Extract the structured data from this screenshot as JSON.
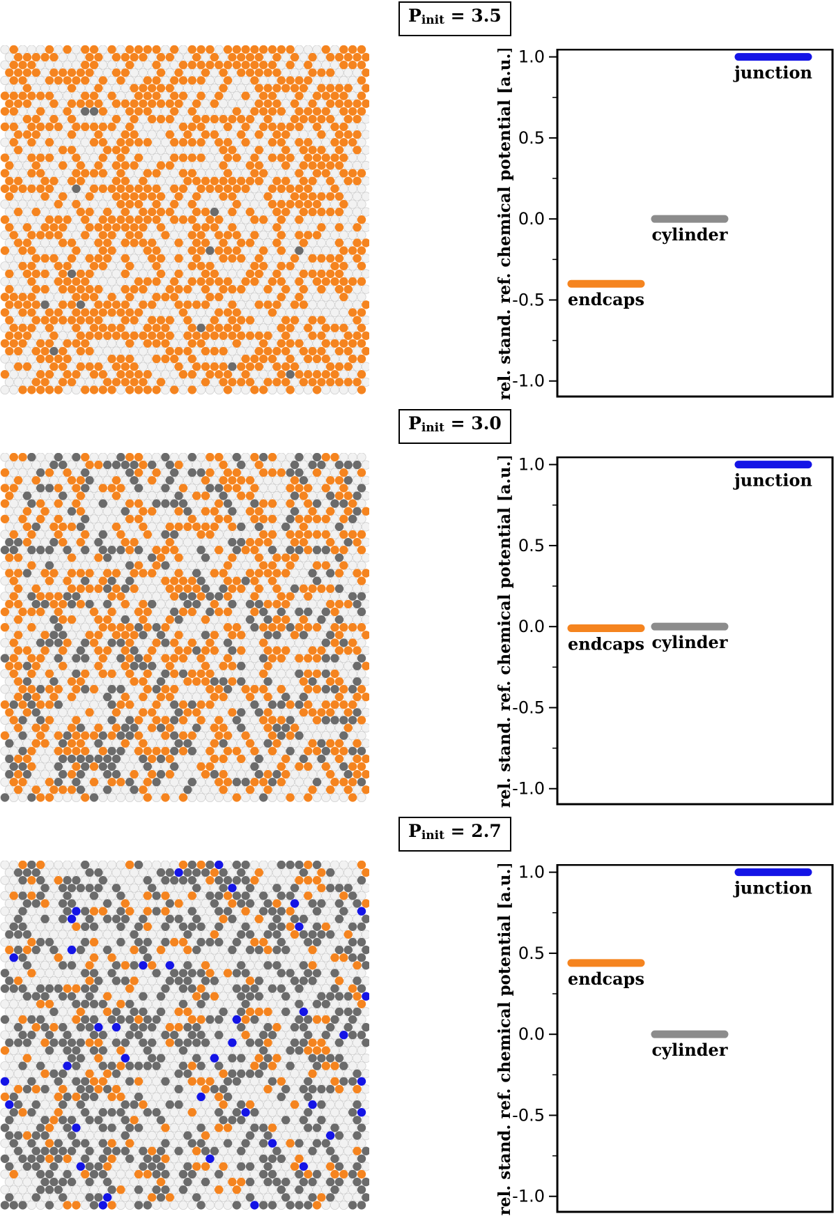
{
  "colors": {
    "endcaps": "#f5841f",
    "cylinder": "#6b6b6b",
    "cylinder_level": "#8c8c8c",
    "junction": "#1414e6",
    "empty": "#f2f2f2",
    "empty_stroke": "#d0d0d0"
  },
  "panels": [
    {
      "title_main": "P",
      "title_sub": "init",
      "title_value": " = 3.5",
      "lattice_mix": {
        "endcaps": 0.52,
        "cylinder": 0.01,
        "junction": 0.0
      }
    },
    {
      "title_main": "P",
      "title_sub": "init",
      "title_value": " = 3.0",
      "lattice_mix": {
        "endcaps": 0.33,
        "cylinder": 0.2,
        "junction": 0.0
      }
    },
    {
      "title_main": "P",
      "title_sub": "init",
      "title_value": " = 2.7",
      "lattice_mix": {
        "endcaps": 0.12,
        "cylinder": 0.34,
        "junction": 0.025
      }
    }
  ],
  "chart_data": [
    {
      "type": "bar",
      "ylabel": "rel. stand. ref. chemical potential [a.u.]",
      "ylim": [
        -1.1,
        1.05
      ],
      "yticks": [
        "1.0",
        "0.5",
        "0.0",
        "-0.5",
        "-1.0"
      ],
      "categories": [
        "endcaps",
        "cylinder",
        "junction"
      ],
      "values": [
        -0.4,
        0.0,
        1.0
      ]
    },
    {
      "type": "bar",
      "ylabel": "rel. stand. ref. chemical potential [a.u.]",
      "ylim": [
        -1.1,
        1.05
      ],
      "yticks": [
        "1.0",
        "0.5",
        "0.0",
        "-0.5",
        "-1.0"
      ],
      "categories": [
        "endcaps",
        "cylinder",
        "junction"
      ],
      "values": [
        -0.01,
        0.0,
        1.0
      ]
    },
    {
      "type": "bar",
      "ylabel": "rel. stand. ref. chemical potential [a.u.]",
      "ylim": [
        -1.1,
        1.05
      ],
      "yticks": [
        "1.0",
        "0.5",
        "0.0",
        "-0.5",
        "-1.0"
      ],
      "categories": [
        "endcaps",
        "cylinder",
        "junction"
      ],
      "values": [
        0.44,
        0.0,
        1.0
      ]
    }
  ]
}
